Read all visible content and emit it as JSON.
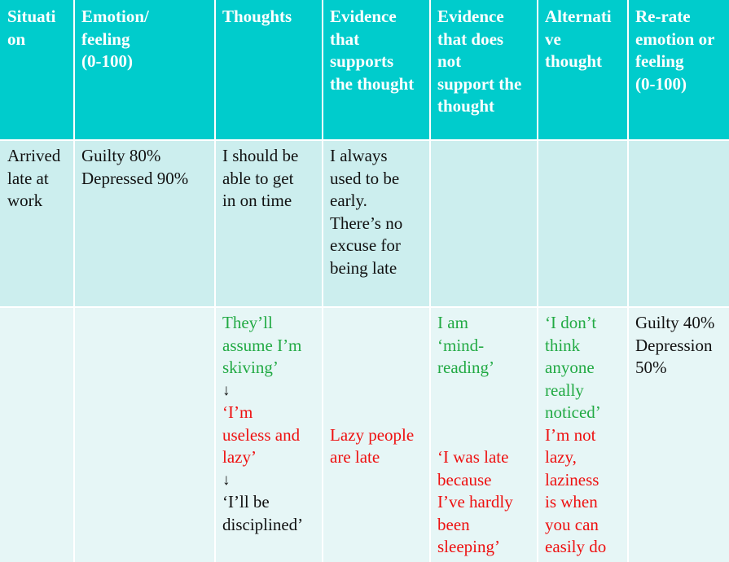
{
  "colors": {
    "header_bg": "#00cccc",
    "row1_bg": "#cceeee",
    "row2_bg": "#e6f6f6",
    "green_text": "#22aa44",
    "red_text": "#ee1111"
  },
  "headers": [
    "Situati\non",
    "Emotion/\nfeeling\n(0-100)",
    "Thoughts",
    "Evidence\nthat\nsupports\nthe thought",
    "Evidence\nthat does\nnot\nsupport the\nthought",
    "Alternati\nve\nthought",
    "Re-rate\nemotion or\nfeeling\n(0-100)"
  ],
  "row1": [
    [
      {
        "text": "Arrived\nlate at\nwork",
        "color": "default"
      }
    ],
    [
      {
        "text": "Guilty 80%\nDepressed 90%",
        "color": "default"
      }
    ],
    [
      {
        "text": "I should be\nable to get\nin on time",
        "color": "default"
      }
    ],
    [
      {
        "text": "I always\nused to be\nearly.\nThere’s no\nexcuse for\nbeing late",
        "color": "default"
      }
    ],
    [],
    [],
    []
  ],
  "row2": [
    [],
    [],
    [
      {
        "text": "They’ll\nassume I’m\nskiving’",
        "color": "green"
      },
      {
        "text": "↓",
        "color": "default",
        "arrow": true
      },
      {
        "text": "",
        "color": "default"
      },
      {
        "text": "‘I’m\nuseless and\nlazy’",
        "color": "red"
      },
      {
        "text": "↓",
        "color": "default",
        "arrow": true
      },
      {
        "text": "‘I’ll be\ndisciplined’",
        "color": "default"
      }
    ],
    [
      {
        "text": "\n\n\n\n\n",
        "color": "default"
      },
      {
        "text": "Lazy people\nare late",
        "color": "red"
      }
    ],
    [
      {
        "text": "I am\n‘mind-\nreading’",
        "color": "green"
      },
      {
        "text": "\n\n\n",
        "color": "default"
      },
      {
        "text": "‘I was late\nbecause\nI’ve hardly\nbeen\nsleeping’",
        "color": "red"
      }
    ],
    [
      {
        "text": "‘I don’t\nthink\nanyone\nreally\nnoticed’",
        "color": "green"
      },
      {
        "text": "I’m not\nlazy,\nlaziness\nis when\nyou can\neasily do",
        "color": "red"
      }
    ],
    [
      {
        "text": "Guilty 40%\nDepression\n50%",
        "color": "default"
      }
    ]
  ]
}
